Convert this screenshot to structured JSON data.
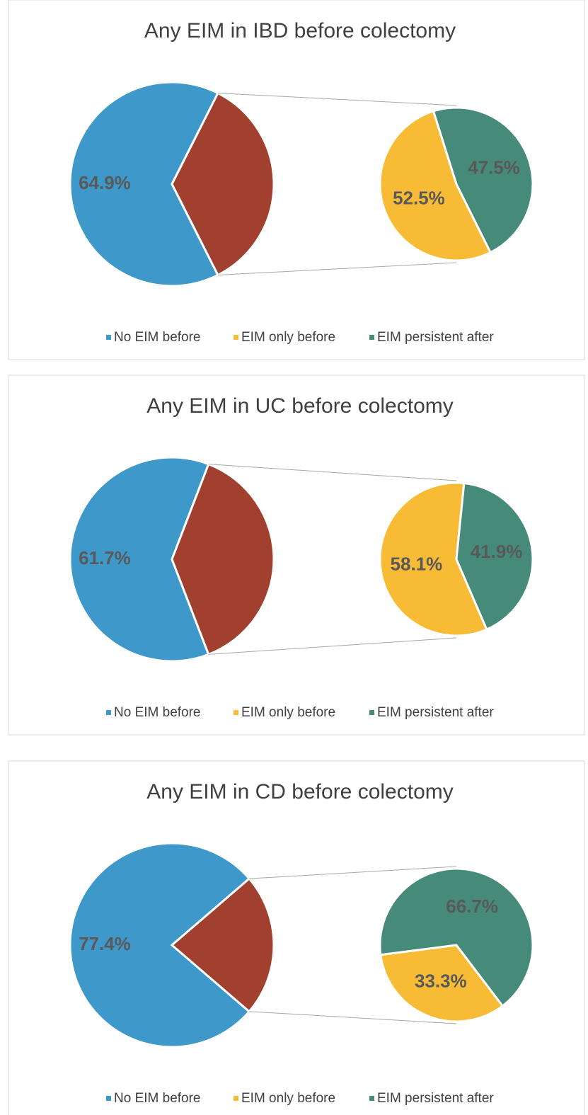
{
  "chart_data": [
    {
      "type": "pie-of-pie",
      "title": "Any EIM in IBD before colectomy",
      "categories": [
        "No EIM before",
        null
      ],
      "values": [
        64.9,
        35.1
      ],
      "value_labels": [
        "64.9%",
        null
      ],
      "colors": [
        "#3e98c9",
        "#a1402e"
      ],
      "secondary": {
        "categories": [
          "EIM only before",
          "EIM persistent after"
        ],
        "values": [
          52.5,
          47.5
        ],
        "value_labels": [
          "52.5%",
          "47.5%"
        ],
        "colors": [
          "#f7bb36",
          "#468a79"
        ]
      },
      "legend": "bottom"
    },
    {
      "type": "pie-of-pie",
      "title": "Any EIM in UC before colectomy",
      "categories": [
        "No EIM before",
        null
      ],
      "values": [
        61.7,
        38.3
      ],
      "value_labels": [
        "61.7%",
        null
      ],
      "colors": [
        "#3e98c9",
        "#a1402e"
      ],
      "secondary": {
        "categories": [
          "EIM only before",
          "EIM persistent after"
        ],
        "values": [
          58.1,
          41.9
        ],
        "value_labels": [
          "58.1%",
          "41.9%"
        ],
        "colors": [
          "#f7bb36",
          "#468a79"
        ]
      },
      "legend": "bottom"
    },
    {
      "type": "pie-of-pie",
      "title": "Any EIM in CD before colectomy",
      "categories": [
        "No EIM before",
        null
      ],
      "values": [
        77.4,
        22.6
      ],
      "value_labels": [
        "77.4%",
        null
      ],
      "colors": [
        "#3e98c9",
        "#a1402e"
      ],
      "secondary": {
        "categories": [
          "EIM only before",
          "EIM persistent after"
        ],
        "values": [
          33.3,
          66.7
        ],
        "value_labels": [
          "33.3%",
          "66.7%"
        ],
        "colors": [
          "#f7bb36",
          "#468a79"
        ]
      },
      "legend": "bottom"
    }
  ]
}
